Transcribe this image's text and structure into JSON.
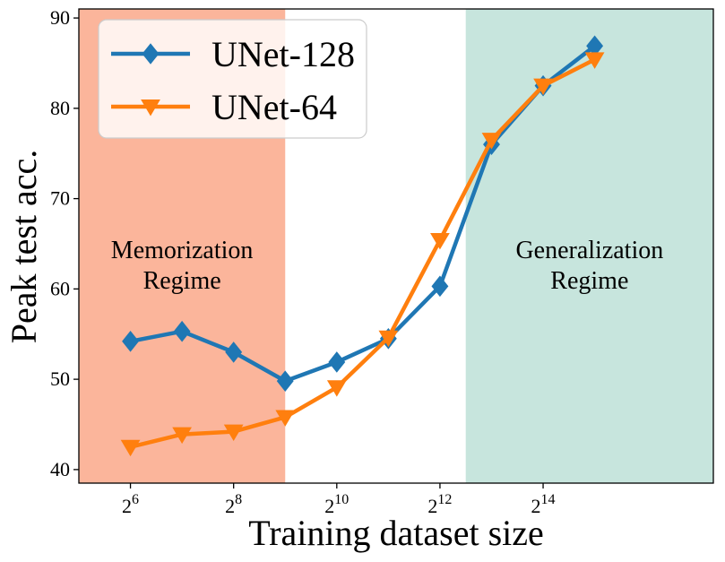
{
  "chart_data": {
    "type": "line",
    "title": "",
    "xlabel": "Training dataset size",
    "ylabel": "Peak test acc.",
    "x_exponents": [
      6,
      7,
      8,
      9,
      10,
      11,
      12,
      13,
      14,
      15
    ],
    "xlim_exponent": [
      5,
      17.3
    ],
    "ylim": [
      38.5,
      91
    ],
    "x_ticks": [
      {
        "exp": 6,
        "base": "2",
        "power": "6"
      },
      {
        "exp": 8,
        "base": "2",
        "power": "8"
      },
      {
        "exp": 10,
        "base": "2",
        "power": "10"
      },
      {
        "exp": 12,
        "base": "2",
        "power": "12"
      },
      {
        "exp": 14,
        "base": "2",
        "power": "14"
      }
    ],
    "y_ticks": [
      40,
      50,
      60,
      70,
      80,
      90
    ],
    "series": [
      {
        "name": "UNet-128",
        "color": "#1f77b4",
        "marker": "diamond",
        "values": [
          54.2,
          55.3,
          53.0,
          49.8,
          51.9,
          54.5,
          60.3,
          76.0,
          82.5,
          86.9
        ]
      },
      {
        "name": "UNet-64",
        "color": "#ff7f0e",
        "marker": "triangle-down",
        "values": [
          42.5,
          43.9,
          44.2,
          45.8,
          49.1,
          54.6,
          65.4,
          76.5,
          82.5,
          85.4
        ]
      }
    ],
    "regions": [
      {
        "name": "memorization",
        "label_lines": [
          "Memorization",
          "Regime"
        ],
        "from_exp": 5,
        "to_exp": 9,
        "color": "#fbb59b"
      },
      {
        "name": "generalization",
        "label_lines": [
          "Generalization",
          "Regime"
        ],
        "from_exp": 12.5,
        "to_exp": 17.3,
        "color": "#c7e5dd"
      }
    ],
    "legend": "top-left",
    "grid": false
  }
}
